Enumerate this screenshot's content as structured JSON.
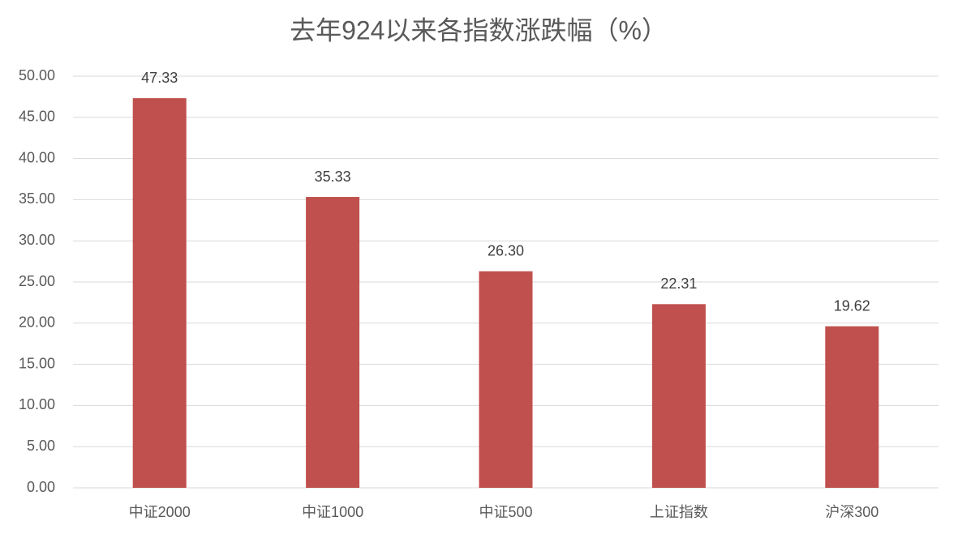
{
  "chart_data": {
    "type": "bar",
    "title": "去年924以来各指数涨跌幅（%）",
    "categories": [
      "中证2000",
      "中证1000",
      "中证500",
      "上证指数",
      "沪深300"
    ],
    "values": [
      47.33,
      35.33,
      26.3,
      22.31,
      19.62
    ],
    "value_labels": [
      "47.33",
      "35.33",
      "26.30",
      "22.31",
      "19.62"
    ],
    "color": "#c0504d",
    "ylim": [
      0,
      50
    ],
    "yticks": [
      {
        "value": 0,
        "label": "0.00"
      },
      {
        "value": 5,
        "label": "5.00"
      },
      {
        "value": 10,
        "label": "10.00"
      },
      {
        "value": 15,
        "label": "15.00"
      },
      {
        "value": 20,
        "label": "20.00"
      },
      {
        "value": 25,
        "label": "25.00"
      },
      {
        "value": 30,
        "label": "30.00"
      },
      {
        "value": 35,
        "label": "35.00"
      },
      {
        "value": 40,
        "label": "40.00"
      },
      {
        "value": 45,
        "label": "45.00"
      },
      {
        "value": 50,
        "label": "50.00"
      }
    ],
    "grid": true
  }
}
